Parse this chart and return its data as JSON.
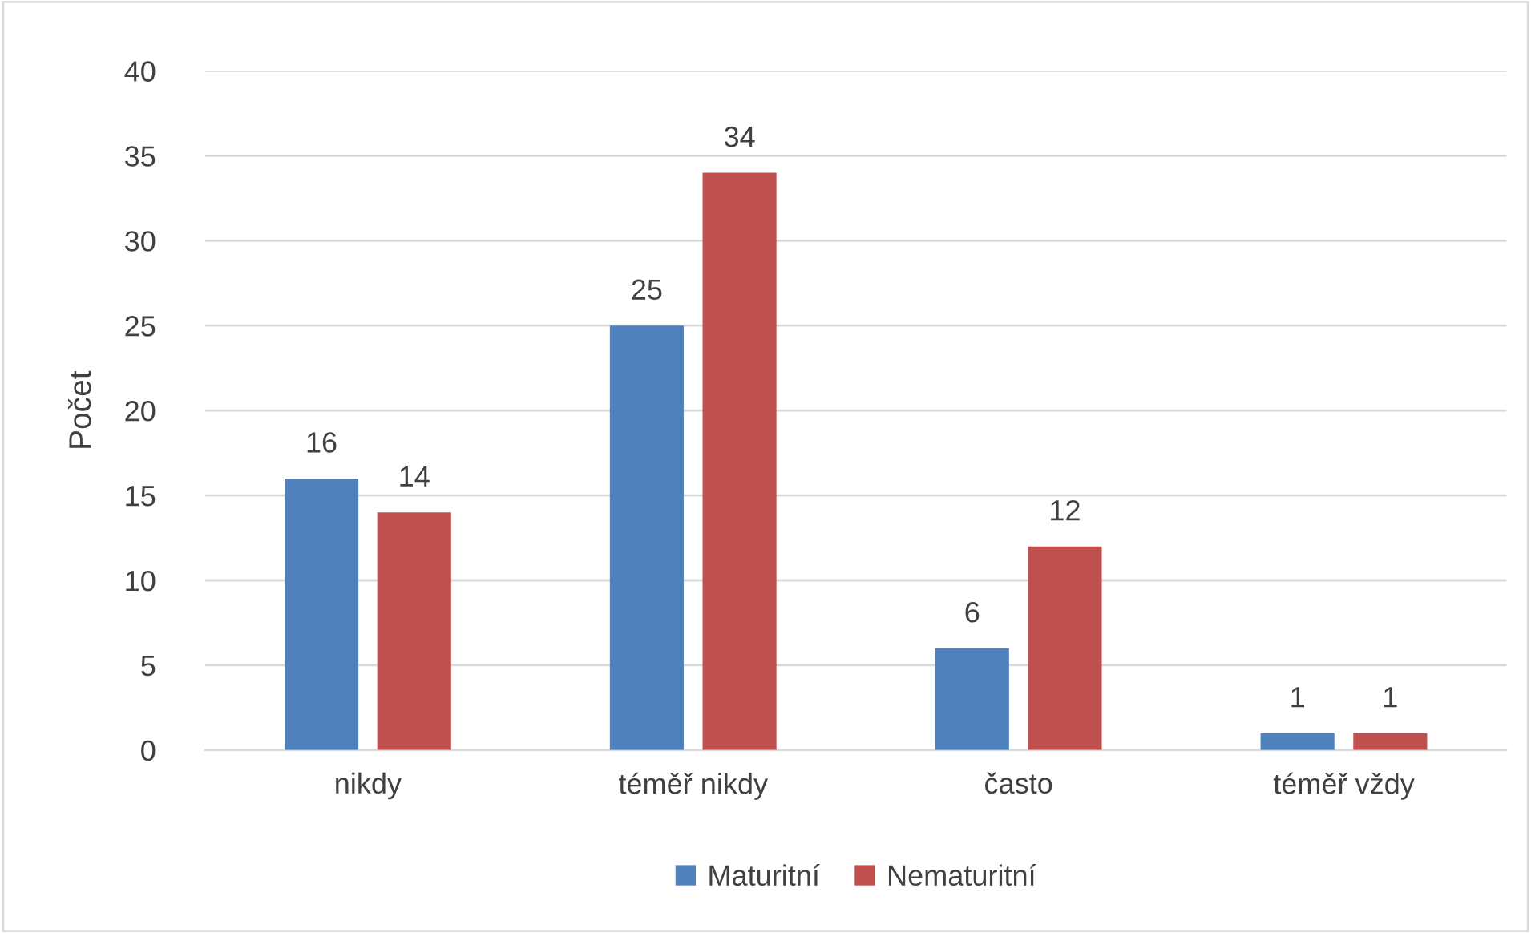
{
  "chart_data": {
    "type": "bar",
    "ylabel": "Počet",
    "categories": [
      "nikdy",
      "téměř nikdy",
      "často",
      "téměř vždy"
    ],
    "series": [
      {
        "name": "Maturitní",
        "color": "#4f81bd",
        "values": [
          16,
          25,
          6,
          1
        ]
      },
      {
        "name": "Nematuritní",
        "color": "#c0504d",
        "values": [
          14,
          34,
          12,
          1
        ]
      }
    ],
    "ylim": [
      0,
      40
    ],
    "yticks": [
      0,
      5,
      10,
      15,
      20,
      25,
      30,
      35,
      40
    ],
    "grid": "y",
    "legend": "bottom",
    "data_labels": true
  }
}
